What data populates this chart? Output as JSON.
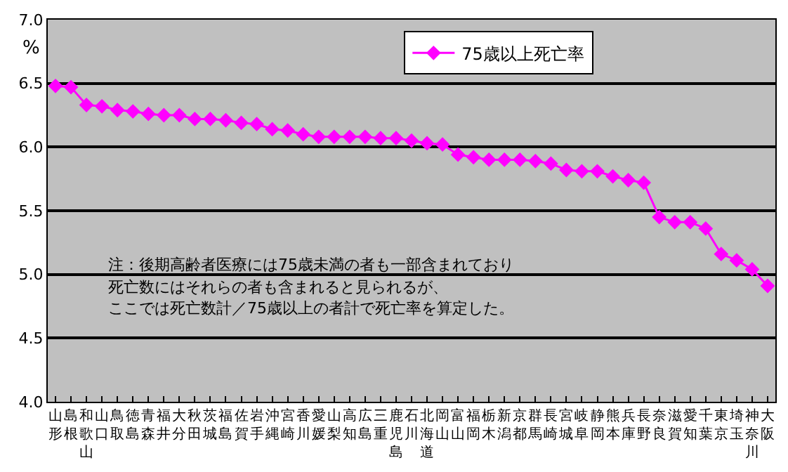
{
  "chart_data": {
    "type": "line",
    "ylabel": "%",
    "categories": [
      "山形",
      "島根",
      "和歌山",
      "山口",
      "鳥取",
      "徳島",
      "青森",
      "福井",
      "大分",
      "秋田",
      "茨城",
      "福島",
      "佐賀",
      "岩手",
      "沖縄",
      "宮崎",
      "香川",
      "愛媛",
      "山梨",
      "高知",
      "広島",
      "三重",
      "鹿児島",
      "石川",
      "北海道",
      "岡山",
      "富山",
      "福岡",
      "栃木",
      "新潟",
      "京都",
      "群馬",
      "長崎",
      "宮城",
      "岐阜",
      "静岡",
      "熊本",
      "兵庫",
      "長野",
      "奈良",
      "滋賀",
      "愛知",
      "千葉",
      "東京",
      "埼玉",
      "神奈川",
      "大阪"
    ],
    "series": [
      {
        "name": "75歳以上死亡率",
        "color": "#ff00ff",
        "values": [
          6.48,
          6.47,
          6.33,
          6.32,
          6.29,
          6.28,
          6.26,
          6.25,
          6.25,
          6.22,
          6.22,
          6.21,
          6.19,
          6.18,
          6.14,
          6.13,
          6.1,
          6.08,
          6.08,
          6.08,
          6.08,
          6.07,
          6.07,
          6.05,
          6.03,
          6.02,
          5.94,
          5.92,
          5.9,
          5.9,
          5.9,
          5.89,
          5.87,
          5.82,
          5.81,
          5.81,
          5.77,
          5.74,
          5.72,
          5.45,
          5.41,
          5.41,
          5.36,
          5.16,
          5.11,
          5.04,
          4.91
        ]
      }
    ],
    "ylim": [
      4.0,
      7.0
    ],
    "yticks": [
      {
        "value": 4.0,
        "label": "4.0"
      },
      {
        "value": 4.5,
        "label": "4.5"
      },
      {
        "value": 5.0,
        "label": "5.0"
      },
      {
        "value": 5.5,
        "label": "5.5"
      },
      {
        "value": 6.0,
        "label": "6.0"
      },
      {
        "value": 6.5,
        "label": "6.5"
      },
      {
        "value": 7.0,
        "label": "7.0"
      }
    ],
    "grid": "y",
    "legend": "top",
    "marker": "diamond",
    "line_style": "solid",
    "annotations": [
      "注：後期高齢者医療には75歳未満の者も一部含まれており",
      "死亡数にはそれらの者も含まれると見られるが、",
      "ここでは死亡数計／75歳以上の者計で死亡率を算定した。"
    ]
  }
}
